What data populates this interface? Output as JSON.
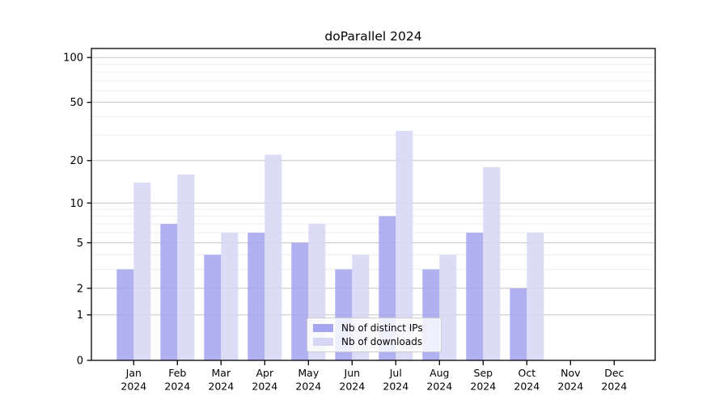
{
  "chart_data": {
    "type": "bar",
    "title": "doParallel 2024",
    "categories": [
      "Jan",
      "Feb",
      "Mar",
      "Apr",
      "May",
      "Jun",
      "Jul",
      "Aug",
      "Sep",
      "Oct",
      "Nov",
      "Dec"
    ],
    "year": "2024",
    "series": [
      {
        "name": "Nb of distinct IPs",
        "color": "#a6a6f0",
        "values": [
          3,
          7,
          4,
          6,
          5,
          3,
          8,
          3,
          6,
          2,
          0,
          0
        ]
      },
      {
        "name": "Nb of downloads",
        "color": "#d7d7f5",
        "values": [
          14,
          16,
          6,
          22,
          7,
          4,
          32,
          4,
          18,
          6,
          0,
          0
        ]
      }
    ],
    "y_axis": {
      "scale": "log10(1+y)",
      "tick_labels": [
        0,
        1,
        2,
        5,
        10,
        20,
        50,
        100
      ],
      "minor_gridlines": [
        3,
        4,
        6,
        7,
        8,
        9,
        30,
        40,
        60,
        70,
        80,
        90
      ],
      "ylim": [
        0,
        115
      ]
    },
    "legend": {
      "position": "lower-center"
    },
    "grid": "horizontal",
    "colors": {
      "major_grid": "#c6c6c6",
      "minor_grid": "#ececec",
      "axis": "#000000",
      "background": "#ffffff"
    }
  }
}
